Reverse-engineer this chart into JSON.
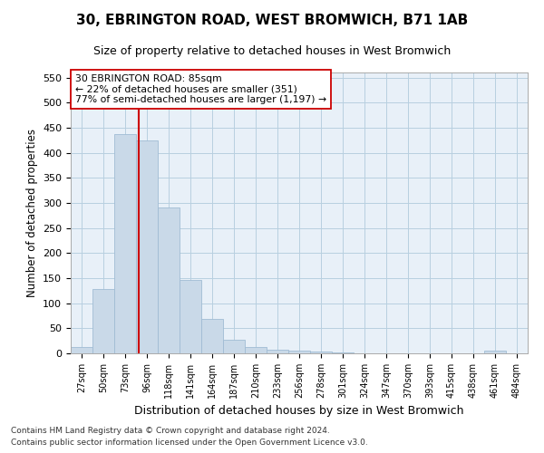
{
  "title": "30, EBRINGTON ROAD, WEST BROMWICH, B71 1AB",
  "subtitle": "Size of property relative to detached houses in West Bromwich",
  "xlabel": "Distribution of detached houses by size in West Bromwich",
  "ylabel": "Number of detached properties",
  "footnote1": "Contains HM Land Registry data © Crown copyright and database right 2024.",
  "footnote2": "Contains public sector information licensed under the Open Government Licence v3.0.",
  "bar_labels": [
    "27sqm",
    "50sqm",
    "73sqm",
    "96sqm",
    "118sqm",
    "141sqm",
    "164sqm",
    "187sqm",
    "210sqm",
    "233sqm",
    "256sqm",
    "278sqm",
    "301sqm",
    "324sqm",
    "347sqm",
    "370sqm",
    "393sqm",
    "415sqm",
    "438sqm",
    "461sqm",
    "484sqm"
  ],
  "bar_values": [
    12,
    128,
    438,
    425,
    290,
    147,
    68,
    27,
    12,
    8,
    5,
    3,
    1,
    0,
    0,
    0,
    0,
    0,
    0,
    6,
    0
  ],
  "bar_color": "#c9d9e8",
  "bar_edge_color": "#a0bcd4",
  "grid_color": "#b8cfe0",
  "background_color": "#e8f0f8",
  "vline_x": 2.62,
  "vline_color": "#cc0000",
  "annotation_text": "30 EBRINGTON ROAD: 85sqm\n← 22% of detached houses are smaller (351)\n77% of semi-detached houses are larger (1,197) →",
  "annotation_box_color": "#ffffff",
  "annotation_box_edge": "#cc0000",
  "ylim": [
    0,
    560
  ],
  "yticks": [
    0,
    50,
    100,
    150,
    200,
    250,
    300,
    350,
    400,
    450,
    500,
    550
  ]
}
